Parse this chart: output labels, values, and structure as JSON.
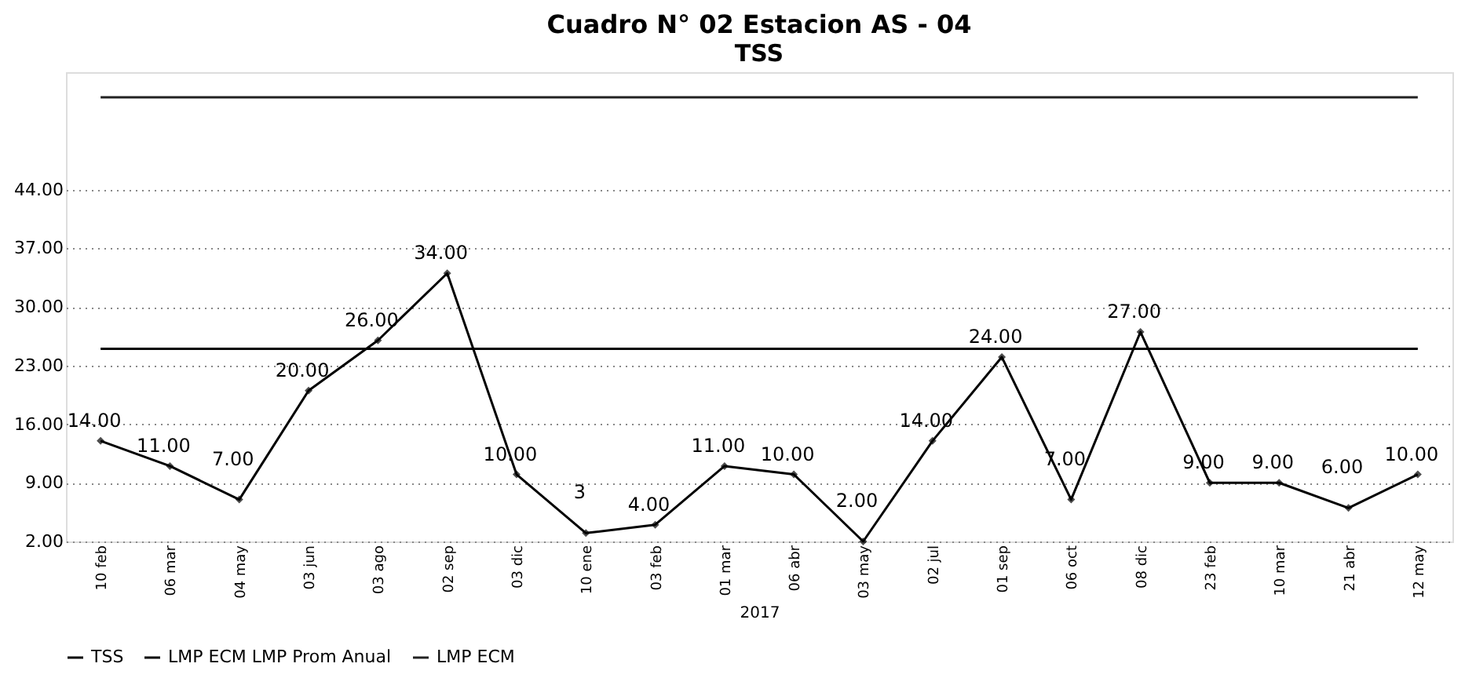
{
  "chart_data": {
    "type": "line",
    "title": "Cuadro N° 02  Estacion AS - 04",
    "subtitle": "TSS",
    "xlabel": "2017",
    "categories": [
      "10 feb",
      "06 mar",
      "04 may",
      "03 jun",
      "03 ago",
      "02 sep",
      "03 dic",
      "10 ene",
      "03 feb",
      "01 mar",
      "06 abr",
      "03 may",
      "02 jul",
      "01 sep",
      "06 oct",
      "08 dic",
      "23 feb",
      "10 mar",
      "21 abr",
      "12 may"
    ],
    "series": [
      {
        "name": "TSS",
        "color": "#000000",
        "marker": "diamond",
        "values": [
          14,
          11,
          7,
          20,
          26,
          34,
          10,
          3,
          4,
          11,
          10,
          2,
          14,
          24,
          7,
          27,
          9,
          9,
          6,
          10
        ],
        "value_labels": [
          "14.00",
          "11.00",
          "7.00",
          "20.00",
          "26.00",
          "34.00",
          "10.00",
          "3",
          "4.00",
          "11.00",
          "10.00",
          "2.00",
          "14.00",
          "24.00",
          "7.00",
          "27.00",
          "9.00",
          "9.00",
          "6.00",
          "10.00"
        ]
      },
      {
        "name": "LMP ECM LMP Prom Anual",
        "color": "#000000",
        "values": [
          25,
          25,
          25,
          25,
          25,
          25,
          25,
          25,
          25,
          25,
          25,
          25,
          25,
          25,
          25,
          25,
          25,
          25,
          25,
          25
        ]
      },
      {
        "name": "LMP ECM",
        "color": "#222222",
        "values": [
          55,
          55,
          55,
          55,
          55,
          55,
          55,
          55,
          55,
          55,
          55,
          55,
          55,
          55,
          55,
          55,
          55,
          55,
          55,
          55
        ]
      }
    ],
    "ylim": [
      2,
      58
    ],
    "yticks": [
      {
        "value": 2,
        "label": "2.00"
      },
      {
        "value": 9,
        "label": "9.00"
      },
      {
        "value": 16,
        "label": "16.00"
      },
      {
        "value": 23,
        "label": "23.00"
      },
      {
        "value": 30,
        "label": "30.00"
      },
      {
        "value": 37,
        "label": "37.00"
      },
      {
        "value": 44,
        "label": "44.00"
      }
    ],
    "grid": "y",
    "legend": "bottom"
  }
}
